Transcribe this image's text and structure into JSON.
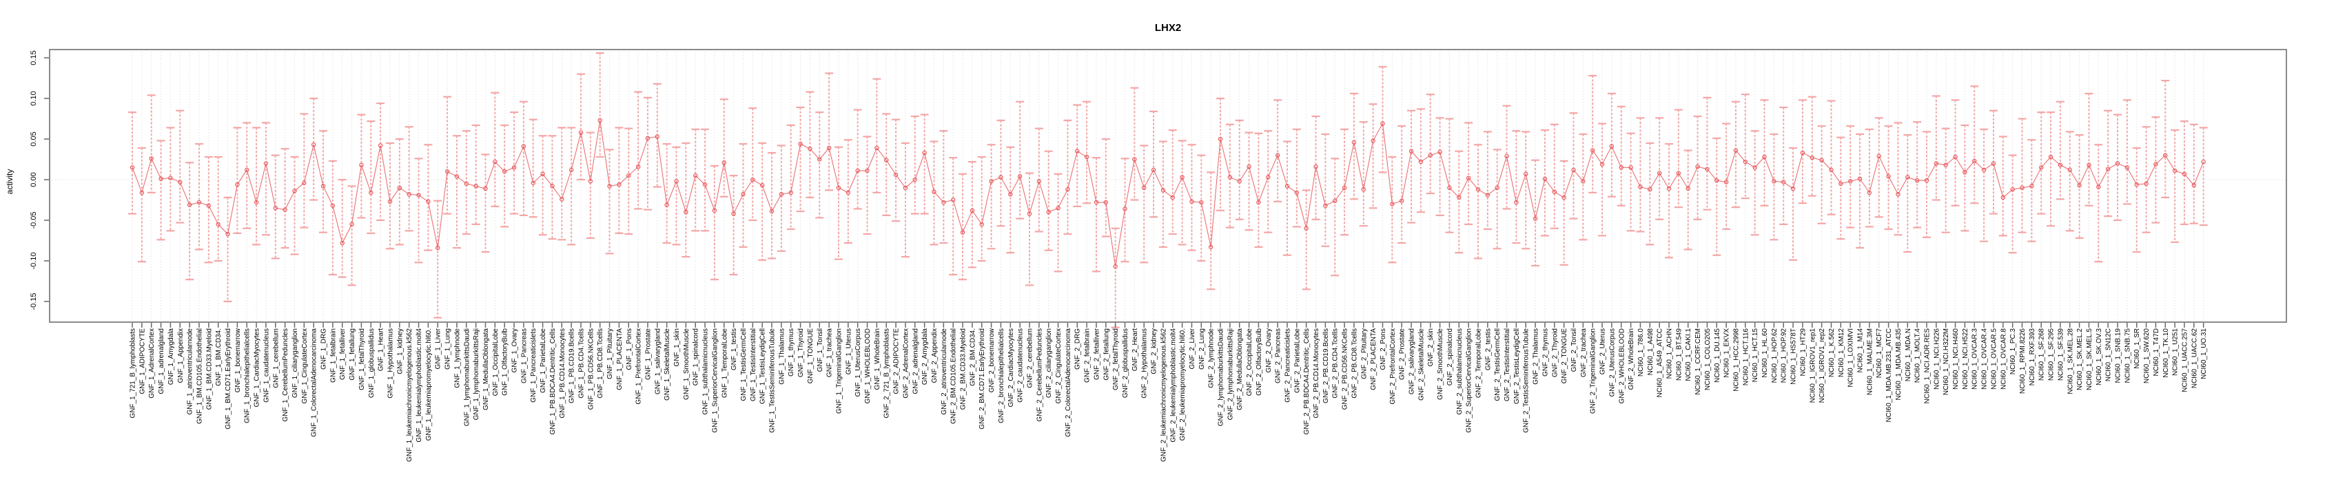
{
  "page": {
    "title": "LHX2"
  },
  "chart_data": {
    "type": "scatter",
    "title": "LHX2",
    "xlabel": "",
    "ylabel": "activity",
    "ylim": [
      -0.175,
      0.16
    ],
    "yticks": [
      0.15,
      0.1,
      0.05,
      0.0,
      -0.05,
      -0.1,
      -0.15
    ],
    "ytick_labels": [
      "0.15",
      "0.10",
      "0.05",
      "0.00",
      "-0.05",
      "-0.10",
      "-0.15"
    ],
    "grid": "dotted vertical gridline at every sample; dotted horizontal line at y=0",
    "legend_position": "none",
    "marker": "open-circle",
    "line_style": "connected with error bars",
    "series_color": "#e8575a",
    "error_bar_color": "#f4a6a6",
    "grid_color": "#d9d9d9",
    "box_color": "#8a8a8a",
    "categories": [
      "GNF_1_721_B_lymphoblasts",
      "GNF_1_ADIPOCYTE",
      "GNF_1_AdrenalCortex",
      "GNF_1_adrenalgland",
      "GNF_1_Amygdala",
      "GNF_1_Appendix",
      "GNF_1_atrioventricularnode",
      "GNF_1_BM.CD105.Endothelial",
      "GNF_1_BM.CD33.Myeloid",
      "GNF_1_BM.CD34.",
      "GNF_1_BM.CD71.EarlyErythroid",
      "GNF_1_bonemarrow",
      "GNF_1_bronchialepithelialcells",
      "GNF_1_CardiacMyocytes",
      "GNF_1_caudatenucleus",
      "GNF_1_cerebellum",
      "GNF_1_CerebellumPeduncles",
      "GNF_1_ciliaryganglion",
      "GNF_1_CingulateCortex",
      "GNF_1_ColorectalAdenocarcinoma",
      "GNF_1_DRG",
      "GNF_1_fetalbrain",
      "GNF_1_fetalliver",
      "GNF_1_fetallung",
      "GNF_1_fetalThyroid",
      "GNF_1_globuspallidus",
      "GNF_1_Heart",
      "GNF_1_Hypothalamus",
      "GNF_1_kidney",
      "GNF_1_leukemiachronicmyelogenous.k562",
      "GNF_1_leukemialymphoblastic.molt4",
      "GNF_1_leukemiapromyelocytic.hl60.",
      "GNF_1_Liver",
      "GNF_1_Lung",
      "GNF_1_lymphnode",
      "GNF_1_lymphomaburkittsDaudi",
      "GNF_1_lymphomaburkittsRaji",
      "GNF_1_MedullaOblongata",
      "GNF_1_OccipitalLobe",
      "GNF_1_OlfactoryBulb",
      "GNF_1_Ovary",
      "GNF_1_Pancreas",
      "GNF_1_Pancreaticislets",
      "GNF_1_ParietalLobe",
      "GNF_1_PB.BDCA4.Dentritic_Cells",
      "GNF_1_PB.CD14.Monocytes",
      "GNF_1_PB.CD19.Bcells",
      "GNF_1_PB.CD4.Tcells",
      "GNF_1_PB.CD56.NKCells",
      "GNF_1_PB.CD8.Tcells",
      "GNF_1_Pituitary",
      "GNF_1_PLACENTA",
      "GNF_1_Pons",
      "GNF_1_PrefrontalCortex",
      "GNF_1_Prostate",
      "GNF_1_salivarygland",
      "GNF_1_SkeletalMuscle",
      "GNF_1_skin",
      "GNF_1_SmoothMuscle",
      "GNF_1_spinalcord",
      "GNF_1_subthalamicnucleus",
      "GNF_1_SuperiorCervicalGanglion",
      "GNF_1_TemporalLobe",
      "GNF_1_testis",
      "GNF_1_TestisGermCell",
      "GNF_1_TestisInterstitial",
      "GNF_1_TestisLeydigCell",
      "GNF_1_TestisSeminiferousTubule",
      "GNF_1_Thalamus",
      "GNF_1_thymus",
      "GNF_1_Thyroid",
      "GNF_1_TONGUE",
      "GNF_1_Tonsil",
      "GNF_1_trachea",
      "GNF_1_TrigeminalGanglion",
      "GNF_1_Uterus",
      "GNF_1_UterusCorpus",
      "GNF_1_WHOLEBLOOD",
      "GNF_1_WholeBrain",
      "GNF_2_721_B_lymphoblasts",
      "GNF_2_ADIPOCYTE",
      "GNF_2_AdrenalCortex",
      "GNF_2_adrenalgland",
      "GNF_2_Amygdala",
      "GNF_2_Appendix",
      "GNF_2_atrioventricularnode",
      "GNF_2_BM.CD105.Endothelial",
      "GNF_2_BM.CD33.Myeloid",
      "GNF_2_BM.CD34.",
      "GNF_2_BM.CD71.EarlyErythroid",
      "GNF_2_bonemarrow",
      "GNF_2_bronchialepithelialcells",
      "GNF_2_CardiacMyocytes",
      "GNF_2_caudatenucleus",
      "GNF_2_cerebellum",
      "GNF_2_CerebellumPeduncles",
      "GNF_2_ciliaryganglion",
      "GNF_2_CingulateCortex",
      "GNF_2_ColorectalAdenocarcinoma",
      "GNF_2_DRG",
      "GNF_2_fetalbrain",
      "GNF_2_fetalliver",
      "GNF_2_fetallung",
      "GNF_2_fetalThyroid",
      "GNF_2_globuspallidus",
      "GNF_2_Heart",
      "GNF_2_Hypothalamus",
      "GNF_2_kidney",
      "GNF_2_leukemiachronicmyelogenous.k562",
      "GNF_2_leukemialymphoblastic.molt4",
      "GNF_2_leukemiapromyelocytic.hl60.",
      "GNF_2_Liver",
      "GNF_2_Lung",
      "GNF_2_lymphnode",
      "GNF_2_lymphomaburkittsDaudi",
      "GNF_2_lymphomaburkittsRaji",
      "GNF_2_MedullaOblongata",
      "GNF_2_OccipitalLobe",
      "GNF_2_OlfactoryBulb",
      "GNF_2_Ovary",
      "GNF_2_Pancreas",
      "GNF_2_Pancreaticislets",
      "GNF_2_ParietalLobe",
      "GNF_2_PB.BDCA4.Dentritic_Cells",
      "GNF_2_PB.CD14.Monocytes",
      "GNF_2_PB.CD19.Bcells",
      "GNF_2_PB.CD4.Tcells",
      "GNF_2_PB.CD56.NKCells",
      "GNF_2_PB.CD8.Tcells",
      "GNF_2_Pituitary",
      "GNF_2_PLACENTA",
      "GNF_2_Pons",
      "GNF_2_PrefrontalCortex",
      "GNF_2_Prostate",
      "GNF_2_salivarygland",
      "GNF_2_SkeletalMuscle",
      "GNF_2_skin",
      "GNF_2_SmoothMuscle",
      "GNF_2_spinalcord",
      "GNF_2_subthalamicnucleus",
      "GNF_2_SuperiorCervicalGanglion",
      "GNF_2_TemporalLobe",
      "GNF_2_testis",
      "GNF_2_TestisGermCell",
      "GNF_2_TestisInterstitial",
      "GNF_2_TestisLeydigCell",
      "GNF_2_TestisSeminiferousTubule",
      "GNF_2_Thalamus",
      "GNF_2_thymus",
      "GNF_2_Thyroid",
      "GNF_2_TONGUE",
      "GNF_2_Tonsil",
      "GNF_2_trachea",
      "GNF_2_TrigeminalGanglion",
      "GNF_2_Uterus",
      "GNF_2_UterusCorpus",
      "GNF_2_WHOLEBLOOD",
      "GNF_2_WholeBrain",
      "NCI60_1_786.0",
      "NCI60_1_A498",
      "NCI60_1_A549_ATCC",
      "NCI60_1_ACHN",
      "NCI60_1_BT.549",
      "NCI60_1_CAKI.1",
      "NCI60_1_CCRF.CEM",
      "NCI60_1_COLO205",
      "NCI60_1_DU.145",
      "NCI60_1_EKVX",
      "NCI60_1_HCC.2998",
      "NCI60_1_HCT.116",
      "NCI60_1_HCT.15",
      "NCI60_1_HL.60",
      "NCI60_1_HOP.62",
      "NCI60_1_HOP.92",
      "NCI60_1_HS578T",
      "NCI60_1_HT29",
      "NCI60_1_IGROV1_rep1",
      "NCI60_1_IGROV1_rep2",
      "NCI60_1_K.562",
      "NCI60_1_KM12",
      "NCI60_1_LOXIMVI",
      "NCI60_1_M14",
      "NCI60_1_MALME.3M",
      "NCI60_1_MCF7",
      "NCI60_1_MDA.MB.231_ATCC",
      "NCI60_1_MDA.MB.435",
      "NCI60_1_MDA.N",
      "NCI60_1_MOLT.4",
      "NCI60_1_NCI.ADR.RES",
      "NCI60_1_NCI.H226",
      "NCI60_1_NCI.H322M",
      "NCI60_1_NCI.H460",
      "NCI60_1_NCI.H522",
      "NCI60_1_OVCAR.3",
      "NCI60_1_OVCAR.4",
      "NCI60_1_OVCAR.5",
      "NCI60_1_OVCAR.8",
      "NCI60_1_PC.3",
      "NCI60_1_RPMI.8226",
      "NCI60_1_RXF.393",
      "NCI60_1_SF.268",
      "NCI60_1_SF.295",
      "NCI60_1_SF.539",
      "NCI60_1_SK.MEL.28",
      "NCI60_1_SK.MEL.2",
      "NCI60_1_SK.MEL.5",
      "NCI60_1_SK.OV.3",
      "NCI60_1_SN12C",
      "NCI60_1_SNB.19",
      "NCI60_1_SNB.75",
      "NCI60_1_SR",
      "NCI60_1_SW.620",
      "NCI60_1_T47D",
      "NCI60_1_TK.10",
      "NCI60_1_U251",
      "NCI60_1_UACC.257",
      "NCI60_1_UACC.62",
      "NCI60_1_UO.31"
    ],
    "values": [
      0.015,
      -0.016,
      0.026,
      0.001,
      0.002,
      -0.003,
      -0.031,
      -0.028,
      -0.032,
      -0.055,
      -0.067,
      -0.006,
      0.012,
      -0.028,
      0.02,
      -0.035,
      -0.037,
      -0.014,
      -0.004,
      0.043,
      -0.008,
      -0.032,
      -0.078,
      -0.055,
      0.018,
      -0.016,
      0.042,
      -0.027,
      -0.01,
      -0.018,
      -0.019,
      -0.027,
      -0.084,
      0.01,
      0.004,
      -0.005,
      -0.008,
      -0.011,
      0.022,
      0.01,
      0.015,
      0.041,
      -0.004,
      0.007,
      -0.008,
      -0.024,
      0.012,
      0.058,
      -0.002,
      0.073,
      -0.008,
      -0.006,
      0.005,
      0.016,
      0.051,
      0.053,
      -0.031,
      -0.002,
      -0.04,
      0.005,
      -0.006,
      -0.038,
      0.021,
      -0.042,
      -0.018,
      0.0,
      -0.007,
      -0.039,
      -0.018,
      -0.016,
      0.044,
      0.038,
      0.025,
      0.039,
      -0.01,
      -0.016,
      0.011,
      0.011,
      0.039,
      0.024,
      0.006,
      -0.01,
      0.0,
      0.033,
      -0.015,
      -0.028,
      -0.025,
      -0.065,
      -0.038,
      -0.055,
      -0.002,
      0.003,
      -0.018,
      0.004,
      -0.042,
      -0.002,
      -0.04,
      -0.035,
      -0.012,
      0.035,
      0.028,
      -0.028,
      -0.028,
      -0.107,
      -0.036,
      0.025,
      -0.01,
      0.012,
      -0.013,
      -0.022,
      0.003,
      -0.027,
      -0.028,
      -0.083,
      0.05,
      0.003,
      -0.002,
      0.016,
      -0.028,
      0.003,
      0.03,
      -0.008,
      -0.016,
      -0.06,
      0.016,
      -0.032,
      -0.026,
      -0.01,
      0.046,
      -0.012,
      0.048,
      0.069,
      -0.03,
      -0.026,
      0.035,
      0.022,
      0.03,
      0.034,
      -0.01,
      -0.022,
      0.002,
      -0.012,
      -0.019,
      -0.01,
      0.029,
      -0.028,
      0.007,
      -0.048,
      0.001,
      -0.015,
      -0.022,
      0.012,
      -0.002,
      0.036,
      0.019,
      0.041,
      0.015,
      0.015,
      -0.009,
      -0.012,
      0.008,
      -0.011,
      0.008,
      -0.011,
      0.016,
      0.013,
      -0.001,
      -0.003,
      0.036,
      0.022,
      0.015,
      0.028,
      -0.002,
      -0.003,
      -0.011,
      0.033,
      0.027,
      0.024,
      0.012,
      -0.005,
      -0.002,
      0.001,
      -0.016,
      0.029,
      0.004,
      -0.018,
      0.003,
      -0.001,
      -0.001,
      0.02,
      0.018,
      0.028,
      0.009,
      0.023,
      0.012,
      0.02,
      -0.022,
      -0.012,
      -0.01,
      -0.008,
      0.015,
      0.028,
      0.018,
      0.012,
      -0.007,
      0.018,
      -0.009,
      0.013,
      0.02,
      0.015,
      -0.006,
      -0.005,
      0.019,
      0.03,
      0.011,
      0.007,
      -0.007,
      0.022
    ],
    "err_up": [
      0.068,
      0.055,
      0.078,
      0.047,
      0.062,
      0.088,
      0.052,
      0.072,
      0.06,
      0.083,
      0.045,
      0.07,
      0.058,
      0.092,
      0.05,
      0.065,
      0.075,
      0.042,
      0.085,
      0.057,
      0.068,
      0.055,
      0.078,
      0.047,
      0.062,
      0.088,
      0.052,
      0.072,
      0.06,
      0.083,
      0.045,
      0.07,
      0.058,
      0.092,
      0.05,
      0.065,
      0.075,
      0.042,
      0.085,
      0.057,
      0.068,
      0.055,
      0.078,
      0.047,
      0.062,
      0.088,
      0.052,
      0.072,
      0.06,
      0.083,
      0.045,
      0.07,
      0.058,
      0.092,
      0.05,
      0.065,
      0.075,
      0.042,
      0.085,
      0.057,
      0.068,
      0.055,
      0.078,
      0.047,
      0.062,
      0.088,
      0.052,
      0.072,
      0.06,
      0.083,
      0.045,
      0.07,
      0.058,
      0.092,
      0.05,
      0.065,
      0.075,
      0.042,
      0.085,
      0.057,
      0.068,
      0.055,
      0.078,
      0.047,
      0.062,
      0.088,
      0.052,
      0.072,
      0.06,
      0.083,
      0.045,
      0.07,
      0.058,
      0.092,
      0.05,
      0.065,
      0.075,
      0.042,
      0.085,
      0.057,
      0.068,
      0.055,
      0.078,
      0.047,
      0.062,
      0.088,
      0.052,
      0.072,
      0.06,
      0.083,
      0.045,
      0.07,
      0.058,
      0.092,
      0.05,
      0.065,
      0.075,
      0.042,
      0.085,
      0.057,
      0.068,
      0.055,
      0.078,
      0.047,
      0.062,
      0.088,
      0.052,
      0.072,
      0.06,
      0.083,
      0.045,
      0.07,
      0.058,
      0.092,
      0.05,
      0.065,
      0.075,
      0.042,
      0.085,
      0.057,
      0.068,
      0.055,
      0.078,
      0.047,
      0.062,
      0.088,
      0.052,
      0.072,
      0.06,
      0.083,
      0.045,
      0.07,
      0.058,
      0.092,
      0.05,
      0.065,
      0.075,
      0.042,
      0.085,
      0.057,
      0.068,
      0.055,
      0.078,
      0.047,
      0.062,
      0.088,
      0.052,
      0.072,
      0.06,
      0.083,
      0.045,
      0.07,
      0.058,
      0.092,
      0.05,
      0.065,
      0.075,
      0.042,
      0.085,
      0.057,
      0.068,
      0.055,
      0.078,
      0.047,
      0.062,
      0.088,
      0.052,
      0.072,
      0.06,
      0.083,
      0.045,
      0.07,
      0.058,
      0.092,
      0.05,
      0.065,
      0.075,
      0.042,
      0.085,
      0.057,
      0.068,
      0.055,
      0.078,
      0.047,
      0.062,
      0.088,
      0.052,
      0.072,
      0.06,
      0.083,
      0.045,
      0.07,
      0.058,
      0.092,
      0.05,
      0.065,
      0.075,
      0.042
    ],
    "err_down": [
      0.057,
      0.085,
      0.042,
      0.075,
      0.065,
      0.05,
      0.092,
      0.058,
      0.07,
      0.045,
      0.083,
      0.06,
      0.072,
      0.052,
      0.088,
      0.062,
      0.047,
      0.078,
      0.055,
      0.068,
      0.057,
      0.085,
      0.042,
      0.075,
      0.065,
      0.05,
      0.092,
      0.058,
      0.07,
      0.045,
      0.083,
      0.06,
      0.086,
      0.052,
      0.088,
      0.062,
      0.047,
      0.078,
      0.055,
      0.068,
      0.057,
      0.085,
      0.042,
      0.075,
      0.065,
      0.05,
      0.092,
      0.058,
      0.07,
      0.045,
      0.083,
      0.06,
      0.072,
      0.052,
      0.088,
      0.062,
      0.047,
      0.078,
      0.055,
      0.068,
      0.057,
      0.085,
      0.042,
      0.075,
      0.065,
      0.05,
      0.092,
      0.058,
      0.07,
      0.045,
      0.083,
      0.06,
      0.072,
      0.052,
      0.088,
      0.062,
      0.047,
      0.078,
      0.055,
      0.068,
      0.057,
      0.085,
      0.042,
      0.075,
      0.065,
      0.05,
      0.092,
      0.058,
      0.07,
      0.045,
      0.083,
      0.06,
      0.072,
      0.052,
      0.088,
      0.062,
      0.047,
      0.078,
      0.055,
      0.068,
      0.057,
      0.085,
      0.042,
      0.075,
      0.065,
      0.05,
      0.092,
      0.058,
      0.07,
      0.045,
      0.083,
      0.06,
      0.072,
      0.052,
      0.088,
      0.062,
      0.047,
      0.078,
      0.055,
      0.068,
      0.057,
      0.085,
      0.042,
      0.075,
      0.065,
      0.05,
      0.092,
      0.058,
      0.07,
      0.045,
      0.083,
      0.06,
      0.072,
      0.052,
      0.088,
      0.062,
      0.047,
      0.078,
      0.055,
      0.068,
      0.057,
      0.085,
      0.042,
      0.075,
      0.065,
      0.05,
      0.092,
      0.058,
      0.07,
      0.045,
      0.083,
      0.06,
      0.072,
      0.052,
      0.088,
      0.062,
      0.047,
      0.078,
      0.055,
      0.068,
      0.057,
      0.085,
      0.042,
      0.075,
      0.065,
      0.05,
      0.092,
      0.058,
      0.07,
      0.045,
      0.083,
      0.06,
      0.072,
      0.052,
      0.088,
      0.062,
      0.047,
      0.078,
      0.055,
      0.068,
      0.057,
      0.085,
      0.042,
      0.075,
      0.065,
      0.05,
      0.092,
      0.058,
      0.07,
      0.045,
      0.083,
      0.06,
      0.072,
      0.052,
      0.088,
      0.062,
      0.047,
      0.078,
      0.055,
      0.068,
      0.057,
      0.085,
      0.042,
      0.075,
      0.065,
      0.05,
      0.092,
      0.058,
      0.07,
      0.045,
      0.083,
      0.06,
      0.072,
      0.052,
      0.088,
      0.062,
      0.047,
      0.078
    ]
  }
}
